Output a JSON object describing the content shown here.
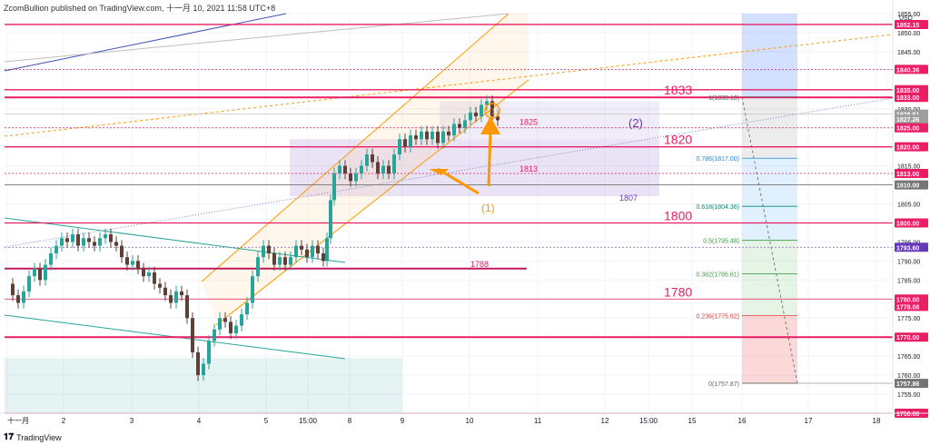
{
  "header": {
    "text": "ZcomBullion published on TradingView.com, 十一月 10, 2021 11:58 UTC+8"
  },
  "footer": {
    "brand": "TradingView",
    "logo_icon": "tradingview-logo-icon"
  },
  "chart_data": {
    "type": "candlestick",
    "currency": "USD",
    "ylim": [
      1750,
      1855
    ],
    "y_ticks": [
      1755,
      1760,
      1765,
      1770,
      1775,
      1780,
      1785,
      1790,
      1795,
      1800,
      1805,
      1810,
      1815,
      1820,
      1825,
      1830,
      1835,
      1840,
      1845,
      1850,
      1855
    ],
    "x_ticks": [
      "十一月",
      "2",
      "3",
      "4",
      "5",
      "15:00",
      "8",
      "9",
      "10",
      "11",
      "12",
      "15:00",
      "15",
      "16",
      "17",
      "18"
    ],
    "price_badges": [
      {
        "value": "1852.15",
        "color": "#e91e63"
      },
      {
        "value": "1840.36",
        "color": "#e91e63"
      },
      {
        "value": "1835.00",
        "color": "#e91e63"
      },
      {
        "value": "1833.00",
        "color": "#e91e63"
      },
      {
        "value": "1828.61",
        "color": "#9e9e9e"
      },
      {
        "value": "1827.26",
        "color": "#9e9e9e"
      },
      {
        "value": "1825.00",
        "color": "#e91e63"
      },
      {
        "value": "1820.00",
        "color": "#e91e63"
      },
      {
        "value": "1813.00",
        "color": "#e91e63"
      },
      {
        "value": "1810.00",
        "color": "#757575"
      },
      {
        "value": "1800.00",
        "color": "#e91e63"
      },
      {
        "value": "1793.60",
        "color": "#673ab7"
      },
      {
        "value": "1780.00",
        "color": "#e91e63"
      },
      {
        "value": "1778.08",
        "color": "#e91e63"
      },
      {
        "value": "1770.00",
        "color": "#e91e63"
      },
      {
        "value": "1757.86",
        "color": "#757575"
      },
      {
        "value": "1750.00",
        "color": "#e91e63"
      }
    ],
    "level_labels": [
      {
        "text": "1833",
        "value": 1833
      },
      {
        "text": "1820",
        "value": 1820
      },
      {
        "text": "1800",
        "value": 1800
      },
      {
        "text": "1780",
        "value": 1780
      }
    ],
    "small_labels": [
      {
        "text": "1825",
        "value": 1825
      },
      {
        "text": "1813",
        "value": 1813
      },
      {
        "text": "1807",
        "value": 1807
      },
      {
        "text": "1788",
        "value": 1788
      }
    ],
    "fib_levels": [
      {
        "label": "1(1833.10)",
        "value": 1833.1
      },
      {
        "label": "0.786(1817.00)",
        "value": 1817.0
      },
      {
        "label": "0.618(1804.36)",
        "value": 1804.36
      },
      {
        "label": "0.5(1795.48)",
        "value": 1795.48
      },
      {
        "label": "0.382(1786.61)",
        "value": 1786.61
      },
      {
        "label": "0.236(1775.62)",
        "value": 1775.62
      },
      {
        "label": "0(1757.87)",
        "value": 1757.87
      }
    ],
    "annotations": [
      {
        "text": "(1)"
      },
      {
        "text": "(2)"
      }
    ],
    "colors": {
      "up": "#26a69a",
      "down": "#5d4037",
      "level": "#e91e63",
      "annotation": "#ff9800",
      "purple": "#673ab7"
    }
  }
}
